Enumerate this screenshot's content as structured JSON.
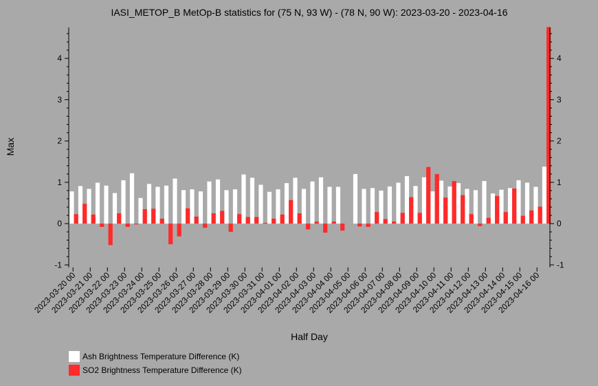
{
  "chart_data": {
    "type": "bar",
    "title": "IASI_METOP_B MetOp-B statistics for (75 N, 93 W) - (78 N, 90 W): 2023-03-20 - 2023-04-16",
    "xlabel": "Half Day",
    "ylabel": "Max",
    "ylim": [
      -1.06,
      4.75
    ],
    "yticks": [
      -1,
      0,
      1,
      2,
      3,
      4
    ],
    "xtick_labels": [
      "2023-03-20 00",
      "2023-03-21 00",
      "2023-03-22 00",
      "2023-03-23 00",
      "2023-03-24 00",
      "2023-03-25 00",
      "2023-03-26 00",
      "2023-03-27 00",
      "2023-03-28 00",
      "2023-03-29 00",
      "2023-03-30 00",
      "2023-03-31 00",
      "2023-04-01 00",
      "2023-04-02 00",
      "2023-04-03 00",
      "2023-04-04 00",
      "2023-04-05 00",
      "2023-04-06 00",
      "2023-04-07 00",
      "2023-04-08 00",
      "2023-04-09 00",
      "2023-04-10 00",
      "2023-04-11 00",
      "2023-04-12 00",
      "2023-04-13 00",
      "2023-04-14 00",
      "2023-04-15 00",
      "2023-04-16 00"
    ],
    "series": [
      {
        "name": "Ash Brightness Temperature Difference (K)",
        "color": "#ffffff",
        "values": [
          0.78,
          0.91,
          0.84,
          0.99,
          0.92,
          0.74,
          1.05,
          1.22,
          0.62,
          0.96,
          0.89,
          0.92,
          1.09,
          0.81,
          0.83,
          0.78,
          1.02,
          1.07,
          0.81,
          0.83,
          1.19,
          1.11,
          0.94,
          0.77,
          0.83,
          0.98,
          1.11,
          0.84,
          1.02,
          1.12,
          0.89,
          0.89,
          null,
          1.2,
          0.84,
          0.86,
          0.8,
          0.9,
          0.99,
          1.15,
          0.91,
          1.12,
          0.78,
          1.04,
          0.9,
          0.98,
          0.84,
          0.81,
          1.03,
          0.73,
          0.82,
          0.86,
          1.05,
          0.99,
          0.89,
          1.38
        ]
      },
      {
        "name": "SO2 Brightness Temperature Difference (K)",
        "color": "#ff2a2a",
        "values": [
          0.23,
          0.48,
          0.22,
          -0.08,
          -0.52,
          0.25,
          -0.08,
          -0.02,
          0.35,
          0.36,
          0.12,
          -0.5,
          -0.31,
          0.37,
          0.17,
          -0.1,
          0.25,
          0.31,
          -0.2,
          0.23,
          0.16,
          0.16,
          0.02,
          0.12,
          0.22,
          0.57,
          0.25,
          -0.14,
          0.05,
          -0.22,
          0.05,
          -0.17,
          null,
          -0.07,
          -0.08,
          0.28,
          0.11,
          0.05,
          0.26,
          0.64,
          0.26,
          1.37,
          1.2,
          0.63,
          1.03,
          0.69,
          0.23,
          -0.06,
          0.14,
          0.67,
          0.28,
          0.85,
          0.19,
          0.32,
          0.41,
          4.76
        ]
      }
    ],
    "legend_position": "bottom-left",
    "grid": false
  }
}
